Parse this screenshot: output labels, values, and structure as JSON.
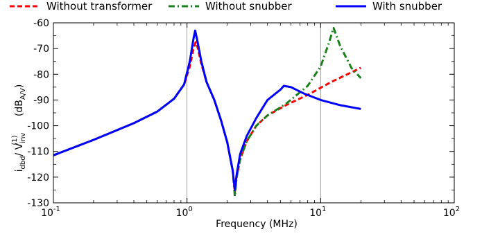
{
  "chart_data": {
    "type": "line",
    "xlabel": "Frequency (MHz)",
    "ylabel": {
      "main": "i",
      "main_sub": "dbd",
      "slash": "/ V",
      "inv_sub": "inv",
      "inv_sup": "(1)",
      "unit_open": "(dB",
      "unit_sub": "A/V",
      "unit_close": ")"
    },
    "xscale": "log",
    "xlim": [
      0.1,
      100
    ],
    "ylim": [
      -130,
      -60
    ],
    "grid": "major-only",
    "x_ticks": [
      {
        "value": 0.1,
        "base": "10",
        "exp": "-1"
      },
      {
        "value": 1,
        "base": "10",
        "exp": "0"
      },
      {
        "value": 10,
        "base": "10",
        "exp": "1"
      },
      {
        "value": 100,
        "base": "10",
        "exp": "2"
      }
    ],
    "y_ticks": [
      -60,
      -70,
      -80,
      -90,
      -100,
      -110,
      -120,
      -130
    ],
    "legend_position": "top",
    "series": [
      {
        "name": "Without transformer",
        "color": "#ff0000",
        "style": "dashed",
        "points": [
          [
            0.1,
            -111.5
          ],
          [
            0.2,
            -105.5
          ],
          [
            0.4,
            -99.0
          ],
          [
            0.6,
            -94.5
          ],
          [
            0.8,
            -89.5
          ],
          [
            0.95,
            -84.0
          ],
          [
            1.05,
            -77.0
          ],
          [
            1.12,
            -70.0
          ],
          [
            1.16,
            -67.5
          ],
          [
            1.2,
            -69.5
          ],
          [
            1.28,
            -76.0
          ],
          [
            1.4,
            -83.0
          ],
          [
            1.6,
            -90.0
          ],
          [
            1.8,
            -98.0
          ],
          [
            2.0,
            -106.5
          ],
          [
            2.2,
            -117.5
          ],
          [
            2.28,
            -126.0
          ],
          [
            2.35,
            -120.0
          ],
          [
            2.5,
            -113.0
          ],
          [
            2.8,
            -106.0
          ],
          [
            3.3,
            -100.0
          ],
          [
            4.0,
            -96.0
          ],
          [
            5.5,
            -92.0
          ],
          [
            8.0,
            -88.0
          ],
          [
            12.0,
            -83.0
          ],
          [
            20.0,
            -77.5
          ]
        ]
      },
      {
        "name": "Without snubber",
        "color": "#1a801a",
        "style": "dashdot",
        "points": [
          [
            0.1,
            -111.5
          ],
          [
            0.2,
            -105.5
          ],
          [
            0.4,
            -99.0
          ],
          [
            0.6,
            -94.5
          ],
          [
            0.8,
            -89.5
          ],
          [
            0.95,
            -84.0
          ],
          [
            1.05,
            -75.0
          ],
          [
            1.12,
            -66.0
          ],
          [
            1.15,
            -63.5
          ],
          [
            1.19,
            -66.5
          ],
          [
            1.28,
            -75.0
          ],
          [
            1.4,
            -83.0
          ],
          [
            1.6,
            -90.0
          ],
          [
            1.8,
            -98.0
          ],
          [
            2.0,
            -106.5
          ],
          [
            2.2,
            -117.5
          ],
          [
            2.28,
            -127.5
          ],
          [
            2.35,
            -120.0
          ],
          [
            2.5,
            -113.0
          ],
          [
            2.8,
            -106.0
          ],
          [
            3.3,
            -100.0
          ],
          [
            4.0,
            -96.0
          ],
          [
            5.5,
            -91.5
          ],
          [
            8.0,
            -84.5
          ],
          [
            10.0,
            -77.0
          ],
          [
            11.5,
            -68.0
          ],
          [
            12.5,
            -62.0
          ],
          [
            14.0,
            -69.0
          ],
          [
            17.0,
            -77.5
          ],
          [
            20.0,
            -81.5
          ]
        ]
      },
      {
        "name": "With snubber",
        "color": "#0000ff",
        "style": "solid",
        "points": [
          [
            0.1,
            -111.5
          ],
          [
            0.2,
            -105.5
          ],
          [
            0.4,
            -99.0
          ],
          [
            0.6,
            -94.5
          ],
          [
            0.8,
            -89.5
          ],
          [
            0.95,
            -84.0
          ],
          [
            1.05,
            -75.0
          ],
          [
            1.12,
            -66.0
          ],
          [
            1.15,
            -63.0
          ],
          [
            1.19,
            -66.5
          ],
          [
            1.28,
            -75.0
          ],
          [
            1.4,
            -83.0
          ],
          [
            1.6,
            -90.0
          ],
          [
            1.8,
            -98.0
          ],
          [
            2.0,
            -106.5
          ],
          [
            2.2,
            -117.5
          ],
          [
            2.28,
            -125.0
          ],
          [
            2.35,
            -119.0
          ],
          [
            2.5,
            -111.0
          ],
          [
            2.8,
            -104.0
          ],
          [
            3.3,
            -97.0
          ],
          [
            4.0,
            -90.0
          ],
          [
            5.0,
            -86.0
          ],
          [
            5.3,
            -84.5
          ],
          [
            6.0,
            -85.0
          ],
          [
            7.5,
            -87.5
          ],
          [
            10.0,
            -90.0
          ],
          [
            14.0,
            -92.0
          ],
          [
            20.0,
            -93.5
          ]
        ]
      }
    ]
  }
}
